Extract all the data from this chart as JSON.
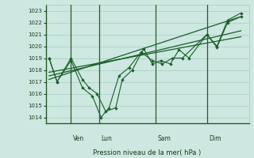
{
  "bg_color": "#cce8e0",
  "grid_color": "#aaccbf",
  "line_color": "#1a5c2a",
  "text_color": "#1a3a1a",
  "axis_color": "#2a5a2a",
  "xlabel_text": "Pression niveau de la mer( hPa )",
  "ylim": [
    1013.5,
    1023.5
  ],
  "yticks": [
    1014,
    1015,
    1016,
    1017,
    1018,
    1019,
    1020,
    1021,
    1022,
    1023
  ],
  "xlim": [
    -0.05,
    3.0
  ],
  "ven_x": 0.12,
  "lun_x": 0.58,
  "sam_x": 1.72,
  "dim_x": 2.46,
  "vline_ven": 0.33,
  "vline_lun": 0.75,
  "vline_sam": 1.6,
  "vline_dim": 2.37,
  "series1_x": [
    0.0,
    0.12,
    0.33,
    0.5,
    0.6,
    0.72,
    0.85,
    1.0,
    1.1,
    1.25,
    1.42,
    1.55,
    1.68,
    1.82,
    1.95,
    2.1,
    2.37,
    2.52,
    2.68,
    2.88
  ],
  "series1_y": [
    1019,
    1017,
    1019,
    1017.2,
    1016.5,
    1016.0,
    1014.5,
    1014.8,
    1017.2,
    1018.0,
    1019.8,
    1018.5,
    1018.8,
    1018.5,
    1019.7,
    1019.0,
    1021.0,
    1019.9,
    1022.0,
    1022.5
  ],
  "series2_x": [
    0.0,
    0.12,
    0.33,
    0.5,
    0.65,
    0.78,
    0.9,
    1.05,
    1.2,
    1.38,
    1.55,
    1.7,
    1.85,
    2.0,
    2.37,
    2.52,
    2.68,
    2.88
  ],
  "series2_y": [
    1019,
    1017,
    1018.8,
    1016.5,
    1015.8,
    1014.0,
    1014.8,
    1017.5,
    1018.2,
    1019.5,
    1018.8,
    1018.5,
    1019.0,
    1019.0,
    1021.0,
    1020.0,
    1022.2,
    1022.8
  ],
  "trend1_x": [
    0.0,
    2.88
  ],
  "trend1_y": [
    1017.2,
    1022.5
  ],
  "trend2_x": [
    0.0,
    2.88
  ],
  "trend2_y": [
    1017.5,
    1021.3
  ],
  "trend3_x": [
    0.0,
    2.88
  ],
  "trend3_y": [
    1017.8,
    1020.8
  ]
}
